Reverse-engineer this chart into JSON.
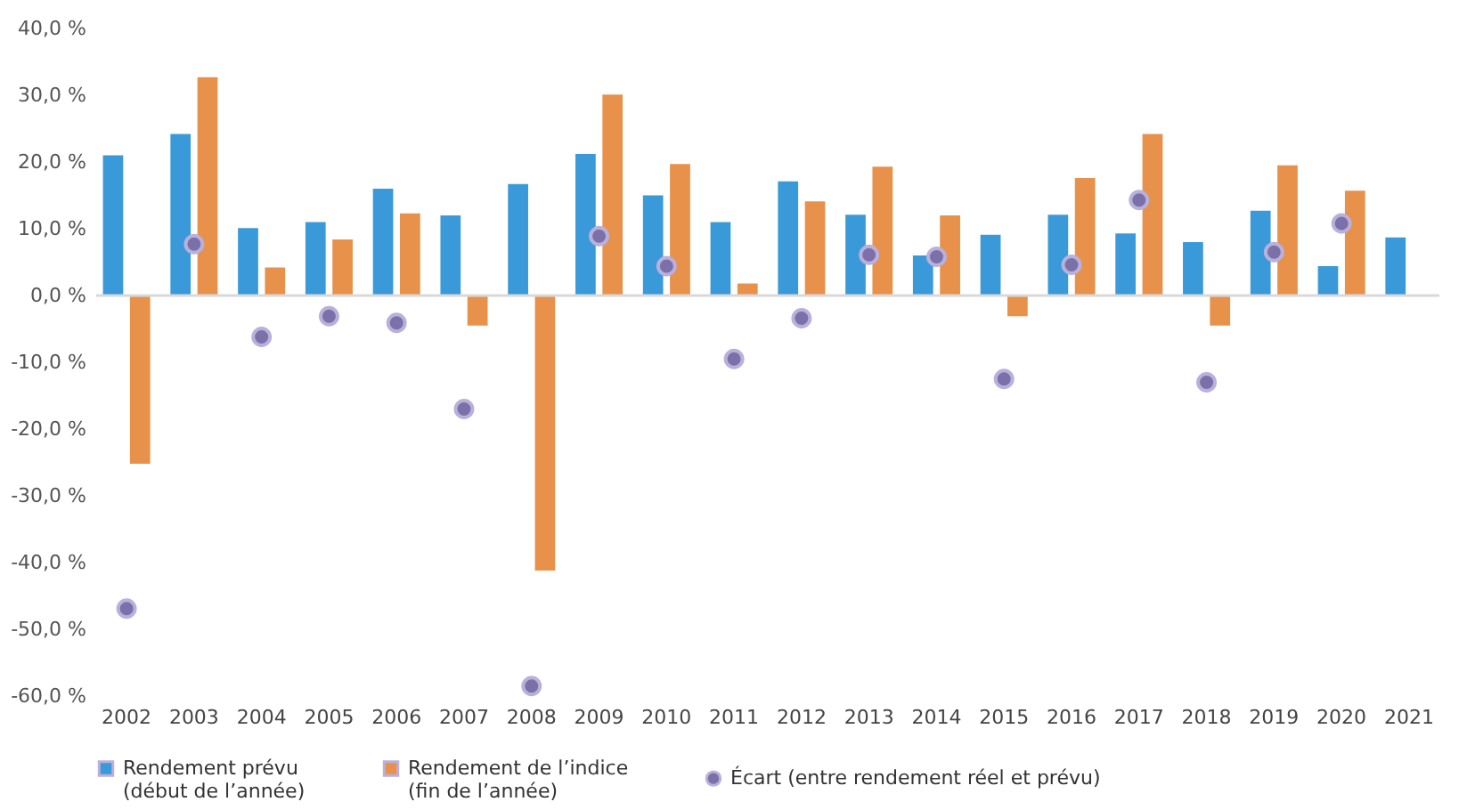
{
  "chart_data": {
    "type": "bar",
    "categories": [
      "2002",
      "2003",
      "2004",
      "2005",
      "2006",
      "2007",
      "2008",
      "2009",
      "2010",
      "2011",
      "2012",
      "2013",
      "2014",
      "2015",
      "2016",
      "2017",
      "2018",
      "2019",
      "2020",
      "2021"
    ],
    "series": [
      {
        "name": "Rendement prévu (début de l’année)",
        "color": "#3a9ad9",
        "values": [
          21.0,
          24.2,
          10.1,
          11.0,
          16.0,
          12.0,
          16.7,
          21.2,
          15.0,
          11.0,
          17.1,
          12.1,
          6.0,
          9.1,
          12.1,
          9.3,
          8.0,
          12.7,
          4.4,
          8.7
        ]
      },
      {
        "name": "Rendement de l’indice (fin de l’année)",
        "color": "#e8914a",
        "values": [
          -25.2,
          32.7,
          4.2,
          8.4,
          12.3,
          -4.5,
          -41.2,
          30.1,
          19.7,
          1.8,
          14.1,
          19.3,
          12.0,
          -3.1,
          17.6,
          24.2,
          -4.5,
          19.5,
          15.7,
          null
        ]
      },
      {
        "name": "Écart (entre rendement réel et prévu)",
        "type": "scatter",
        "color": "#7b70a8",
        "values": [
          -46.9,
          7.7,
          -6.2,
          -3.1,
          -4.1,
          -17.0,
          -58.5,
          8.9,
          4.4,
          -9.5,
          -3.4,
          6.1,
          5.8,
          -12.5,
          4.6,
          14.3,
          -13.0,
          6.5,
          10.8,
          null
        ]
      }
    ],
    "ylim": [
      -60,
      40
    ],
    "yticks": [
      {
        "value": -60,
        "label": "-60,0 %"
      },
      {
        "value": -50,
        "label": "-50,0 %"
      },
      {
        "value": -40,
        "label": "-40,0 %"
      },
      {
        "value": -30,
        "label": "-30,0 %"
      },
      {
        "value": -20,
        "label": "-20,0 %"
      },
      {
        "value": -10,
        "label": "-10,0 %"
      },
      {
        "value": 0,
        "label": "0,0 %"
      },
      {
        "value": 10,
        "label": "10,0 %"
      },
      {
        "value": 20,
        "label": "20,0 %"
      },
      {
        "value": 30,
        "label": "30,0 %"
      },
      {
        "value": 40,
        "label": "40,0 %"
      }
    ],
    "ref_lines": [
      {
        "axis": "y",
        "value": 0,
        "color": "#d9d9d9"
      }
    ],
    "grid": false,
    "legend": "bottom",
    "marker": "circle"
  }
}
